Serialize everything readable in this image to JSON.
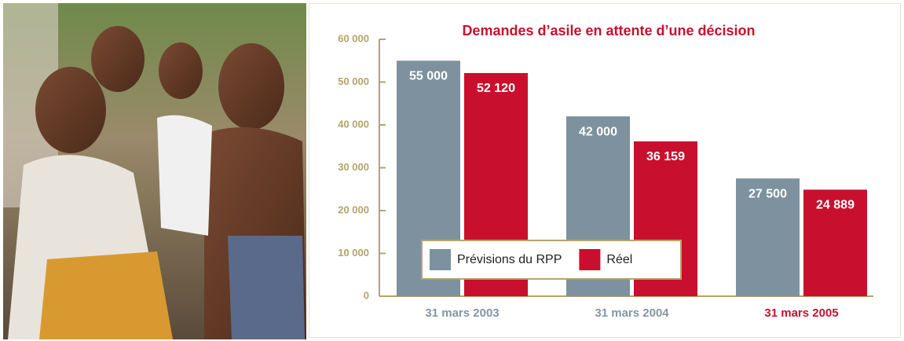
{
  "chart_data": {
    "type": "bar",
    "title": "Demandes d’asile en attente d’une décision",
    "categories": [
      "31 mars 2003",
      "31 mars 2004",
      "31 mars 2005"
    ],
    "category_label_colors": [
      "#8496a4",
      "#8496a4",
      "#c8102e"
    ],
    "series": [
      {
        "name": "Prévisions du RPP",
        "color": "#7d929e",
        "values": [
          55000,
          42000,
          27500
        ],
        "value_labels": [
          "55 000",
          "42 000",
          "27 500"
        ]
      },
      {
        "name": "Réel",
        "color": "#c8102e",
        "values": [
          52120,
          36159,
          24889
        ],
        "value_labels": [
          "52 120",
          "36 159",
          "24 889"
        ]
      }
    ],
    "ylim": [
      0,
      60000
    ],
    "yticks": [
      0,
      {
        "value": 10000,
        "label": "10 000"
      },
      {
        "value": 20000,
        "label": "20 000"
      },
      {
        "value": 30000,
        "label": "30 000"
      },
      {
        "value": 40000,
        "label": "40 000"
      },
      {
        "value": 50000,
        "label": "50 000"
      },
      {
        "value": 60000,
        "label": "60 000"
      }
    ],
    "axis_color": "#b3a46b",
    "legend": "lower-left"
  }
}
